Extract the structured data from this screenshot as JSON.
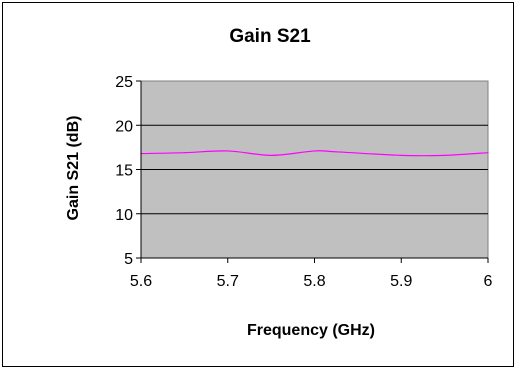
{
  "chart_data": {
    "type": "line",
    "title": "Gain S21",
    "xlabel": "Frequency (GHz)",
    "ylabel": "Gain S21 (dB)",
    "xlim": [
      5.6,
      6
    ],
    "ylim": [
      5,
      25
    ],
    "xticks": [
      "5.6",
      "5.7",
      "5.8",
      "5.9",
      "6"
    ],
    "yticks": [
      "25",
      "20",
      "15",
      "10",
      "5"
    ],
    "grid": "horizontal",
    "legend": "none",
    "plot_background": "#c0c0c0",
    "series": [
      {
        "color": "#ff00ff",
        "x": [
          5.6,
          5.65,
          5.7,
          5.75,
          5.8,
          5.825,
          5.9,
          5.95,
          6.0
        ],
        "y": [
          16.8,
          16.9,
          17.1,
          16.6,
          17.1,
          17.0,
          16.6,
          16.6,
          16.9
        ]
      }
    ]
  }
}
